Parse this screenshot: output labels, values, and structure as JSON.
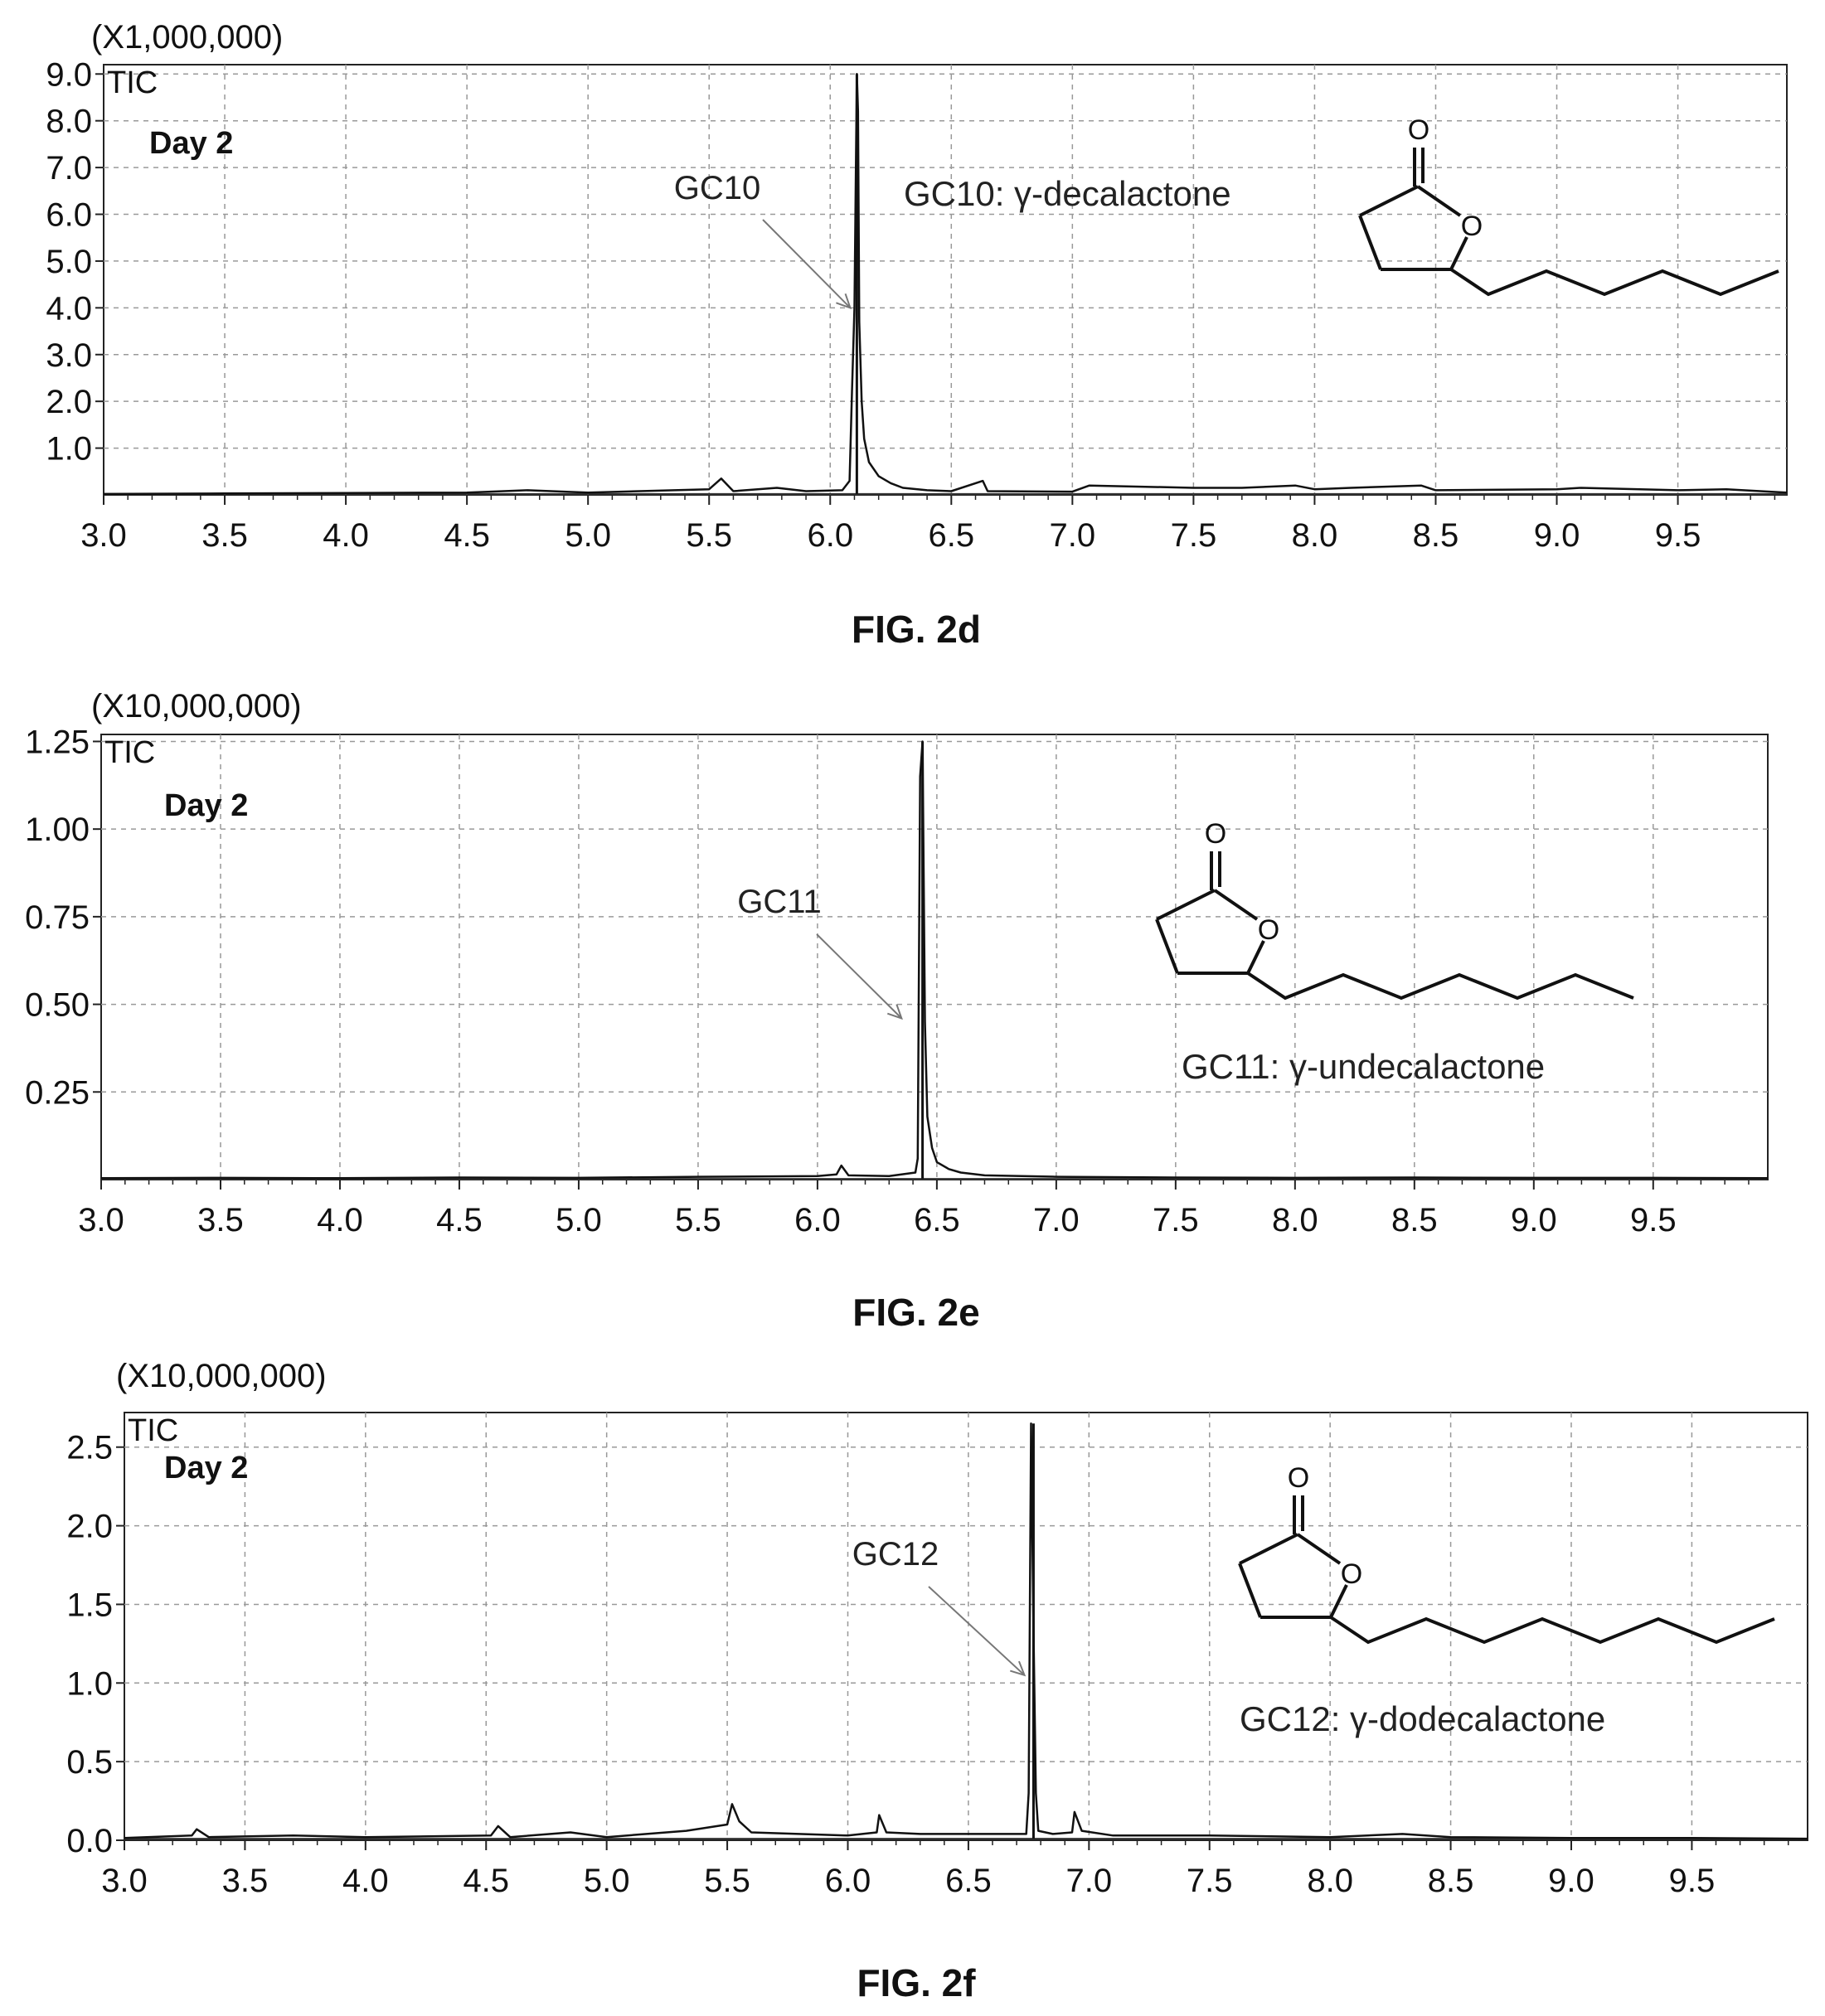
{
  "chart_data": [
    {
      "type": "line",
      "figure_label": "FIG. 2d",
      "scale_label": "(X1,000,000)",
      "trace_label": "TIC",
      "day_label": "Day 2",
      "xlim": [
        3.0,
        9.95
      ],
      "ylim": [
        0,
        9.2
      ],
      "x_ticks": [
        "3.0",
        "3.5",
        "4.0",
        "4.5",
        "5.0",
        "5.5",
        "6.0",
        "6.5",
        "7.0",
        "7.5",
        "8.0",
        "8.5",
        "9.0",
        "9.5"
      ],
      "y_ticks": [
        "1.0",
        "2.0",
        "3.0",
        "4.0",
        "5.0",
        "6.0",
        "7.0",
        "8.0",
        "9.0"
      ],
      "grid": true,
      "peak_label": "GC10",
      "peak_x": 6.11,
      "peak_y": 9.0,
      "arrow_target": [
        6.11,
        4.0
      ],
      "compound_label": "GC10: γ-decalactone",
      "structure_chain_carbons": 6,
      "baseline": 0.02,
      "series": [
        {
          "x": [
            3.0,
            3.5,
            4.0,
            4.5,
            4.75,
            5.0,
            5.5,
            5.55,
            5.6,
            5.78,
            5.9,
            6.05,
            6.08,
            6.09,
            6.1,
            6.11,
            6.115,
            6.12,
            6.13,
            6.14,
            6.16,
            6.2,
            6.25,
            6.3,
            6.4,
            6.5,
            6.63,
            6.65,
            7.0,
            7.07,
            7.5,
            7.7,
            7.92,
            8.0,
            8.15,
            8.44,
            8.5,
            9.0,
            9.1,
            9.5,
            9.7,
            9.95
          ],
          "y": [
            0.02,
            0.03,
            0.04,
            0.05,
            0.1,
            0.05,
            0.12,
            0.35,
            0.08,
            0.15,
            0.08,
            0.1,
            0.3,
            2.2,
            4.0,
            9.0,
            8.2,
            3.7,
            2.0,
            1.2,
            0.7,
            0.4,
            0.25,
            0.15,
            0.1,
            0.08,
            0.3,
            0.08,
            0.07,
            0.2,
            0.15,
            0.15,
            0.2,
            0.12,
            0.15,
            0.2,
            0.1,
            0.12,
            0.15,
            0.1,
            0.12,
            0.05
          ]
        }
      ]
    },
    {
      "type": "line",
      "figure_label": "FIG. 2e",
      "scale_label": "(X10,000,000)",
      "trace_label": "TIC",
      "day_label": "Day 2",
      "xlim": [
        3.0,
        9.98
      ],
      "ylim": [
        0,
        1.27
      ],
      "x_ticks": [
        "3.0",
        "3.5",
        "4.0",
        "4.5",
        "5.0",
        "5.5",
        "6.0",
        "6.5",
        "7.0",
        "7.5",
        "8.0",
        "8.5",
        "9.0",
        "9.5"
      ],
      "y_ticks": [
        "0.25",
        "0.50",
        "0.75",
        "1.00",
        "1.25"
      ],
      "grid": true,
      "peak_label": "GC11",
      "peak_x": 6.44,
      "peak_y": 1.25,
      "arrow_target": [
        6.38,
        0.46
      ],
      "compound_label": "GC11: γ-undecalactone",
      "structure_chain_carbons": 7,
      "baseline": 0.002,
      "series": [
        {
          "x": [
            3.0,
            3.5,
            4.0,
            4.5,
            5.0,
            5.5,
            6.0,
            6.08,
            6.1,
            6.13,
            6.3,
            6.41,
            6.42,
            6.43,
            6.44,
            6.45,
            6.46,
            6.48,
            6.5,
            6.55,
            6.6,
            6.7,
            7.0,
            7.5,
            8.0,
            8.5,
            9.0,
            9.5,
            9.98
          ],
          "y": [
            0.004,
            0.005,
            0.004,
            0.006,
            0.005,
            0.008,
            0.01,
            0.015,
            0.04,
            0.012,
            0.01,
            0.02,
            0.06,
            1.15,
            1.25,
            0.45,
            0.18,
            0.09,
            0.05,
            0.03,
            0.02,
            0.012,
            0.008,
            0.006,
            0.005,
            0.006,
            0.005,
            0.005,
            0.004
          ]
        }
      ]
    },
    {
      "type": "line",
      "figure_label": "FIG. 2f",
      "scale_label": "(X10,000,000)",
      "trace_label": "TIC",
      "day_label": "Day 2",
      "xlim": [
        3.0,
        9.98
      ],
      "ylim": [
        0,
        2.72
      ],
      "x_ticks": [
        "3.0",
        "3.5",
        "4.0",
        "4.5",
        "5.0",
        "5.5",
        "6.0",
        "6.5",
        "7.0",
        "7.5",
        "8.0",
        "8.5",
        "9.0",
        "9.5"
      ],
      "y_ticks": [
        "0.0",
        "0.5",
        "1.0",
        "1.5",
        "2.0",
        "2.5"
      ],
      "grid": true,
      "peak_label": "GC12",
      "peak_x": 6.77,
      "peak_y": 2.65,
      "arrow_target": [
        6.76,
        1.05
      ],
      "compound_label": "GC12: γ-dodecalactone",
      "structure_chain_carbons": 8,
      "baseline": 0.01,
      "series": [
        {
          "x": [
            3.0,
            3.28,
            3.3,
            3.35,
            3.7,
            4.0,
            4.52,
            4.55,
            4.6,
            4.85,
            5.0,
            5.33,
            5.5,
            5.52,
            5.55,
            5.6,
            6.0,
            6.12,
            6.13,
            6.16,
            6.3,
            6.74,
            6.75,
            6.76,
            6.77,
            6.78,
            6.79,
            6.85,
            6.93,
            6.94,
            6.97,
            7.1,
            7.5,
            8.0,
            8.3,
            8.5,
            9.0,
            9.5,
            9.98
          ],
          "y": [
            0.015,
            0.03,
            0.07,
            0.02,
            0.03,
            0.02,
            0.03,
            0.09,
            0.02,
            0.05,
            0.02,
            0.06,
            0.1,
            0.23,
            0.12,
            0.05,
            0.03,
            0.05,
            0.16,
            0.05,
            0.04,
            0.04,
            0.3,
            2.65,
            1.35,
            0.3,
            0.06,
            0.04,
            0.05,
            0.18,
            0.06,
            0.03,
            0.03,
            0.02,
            0.04,
            0.02,
            0.015,
            0.015,
            0.01
          ]
        }
      ]
    }
  ]
}
